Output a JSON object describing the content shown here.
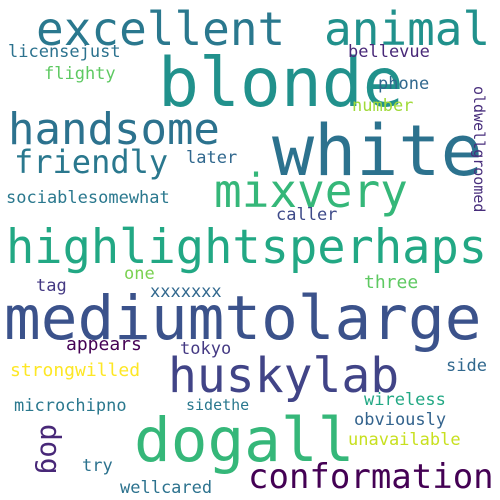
{
  "palette": {
    "background": "#ffffff",
    "dark_purple": "#440154",
    "indigo": "#3b4f8a",
    "blue": "#31688e",
    "teal": "#21918c",
    "green": "#35b779",
    "light_green": "#7ad151",
    "yellow": "#fde725"
  },
  "words": [
    {
      "id": "excellent",
      "text": "excellent",
      "color": "#2a788e"
    },
    {
      "id": "animal",
      "text": "animal",
      "color": "#21918c"
    },
    {
      "id": "blonde",
      "text": "blonde",
      "color": "#21918c"
    },
    {
      "id": "white",
      "text": "white",
      "color": "#2c728e"
    },
    {
      "id": "handsome",
      "text": "handsome",
      "color": "#2c728e"
    },
    {
      "id": "mixvery",
      "text": "mixvery",
      "color": "#35b779"
    },
    {
      "id": "friendly",
      "text": "friendly",
      "color": "#2a788e"
    },
    {
      "id": "highlightsperhaps",
      "text": "highlightsperhaps",
      "color": "#22a884"
    },
    {
      "id": "mediumtolarge",
      "text": "mediumtolarge",
      "color": "#3b528b"
    },
    {
      "id": "huskylab",
      "text": "huskylab",
      "color": "#414487"
    },
    {
      "id": "dogall",
      "text": "dogall",
      "color": "#35b779"
    },
    {
      "id": "conformation",
      "text": "conformation",
      "color": "#440154"
    },
    {
      "id": "licensejust",
      "text": "licensejust",
      "color": "#2c728e"
    },
    {
      "id": "flighty",
      "text": "flighty",
      "color": "#5ec962"
    },
    {
      "id": "bellevue",
      "text": "bellevue",
      "color": "#482878"
    },
    {
      "id": "phone",
      "text": "phone",
      "color": "#31688e"
    },
    {
      "id": "number",
      "text": "number",
      "color": "#a0da39"
    },
    {
      "id": "later",
      "text": "later",
      "color": "#31688e"
    },
    {
      "id": "sociablesomewhat",
      "text": "sociablesomewhat",
      "color": "#2a788e"
    },
    {
      "id": "caller",
      "text": "caller",
      "color": "#3e4a89"
    },
    {
      "id": "oldwellgroomed",
      "text": "oldwellgroomed",
      "color": "#472d7b"
    },
    {
      "id": "one",
      "text": "one",
      "color": "#7ad151"
    },
    {
      "id": "tag",
      "text": "tag",
      "color": "#443983"
    },
    {
      "id": "three",
      "text": "three",
      "color": "#5ec962"
    },
    {
      "id": "xxxxxxx",
      "text": "xxxxxxx",
      "color": "#31688e"
    },
    {
      "id": "appears",
      "text": "appears",
      "color": "#440154"
    },
    {
      "id": "tokyo",
      "text": "tokyo",
      "color": "#443983"
    },
    {
      "id": "strongwilled",
      "text": "strongwilled",
      "color": "#fde725"
    },
    {
      "id": "side",
      "text": "side",
      "color": "#31688e"
    },
    {
      "id": "microchipno",
      "text": "microchipno",
      "color": "#2a788e"
    },
    {
      "id": "sidethe",
      "text": "sidethe",
      "color": "#2a788e"
    },
    {
      "id": "wireless",
      "text": "wireless",
      "color": "#22a884"
    },
    {
      "id": "obviously",
      "text": "obviously",
      "color": "#33638d"
    },
    {
      "id": "unavailable",
      "text": "unavailable",
      "color": "#c8e020"
    },
    {
      "id": "dog",
      "text": "dog",
      "color": "#482878"
    },
    {
      "id": "try",
      "text": "try",
      "color": "#2c728e"
    },
    {
      "id": "wellcared",
      "text": "wellcared",
      "color": "#2c728e"
    }
  ]
}
